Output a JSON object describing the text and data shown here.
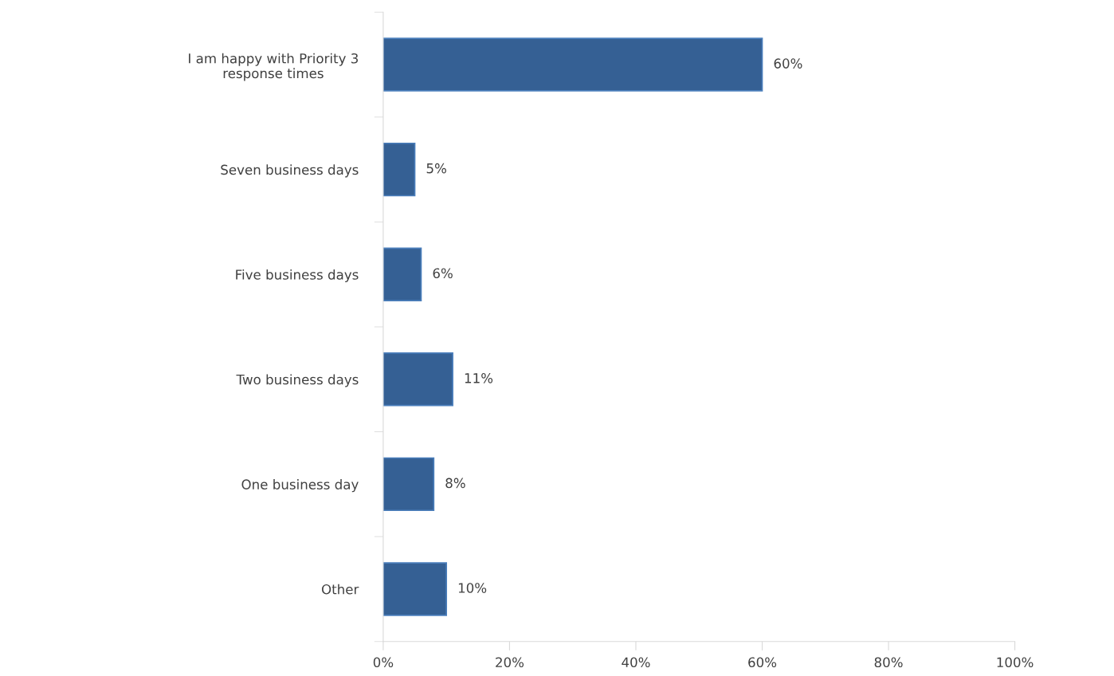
{
  "chart_data": {
    "type": "bar",
    "orientation": "horizontal",
    "categories": [
      "I am happy with Priority 3\nresponse times",
      "Seven business days",
      "Five business days",
      "Two business days",
      "One business day",
      "Other"
    ],
    "values": [
      60,
      5,
      6,
      11,
      8,
      10
    ],
    "value_labels": [
      "60%",
      "5%",
      "6%",
      "11%",
      "8%",
      "10%"
    ],
    "color": "#356094",
    "xlim": [
      0,
      100
    ],
    "xticks": [
      {
        "value": 0,
        "label": "0%"
      },
      {
        "value": 20,
        "label": "20%"
      },
      {
        "value": 40,
        "label": "40%"
      },
      {
        "value": 60,
        "label": "60%"
      },
      {
        "value": 80,
        "label": "80%"
      },
      {
        "value": 100,
        "label": "100%"
      }
    ],
    "grid": false,
    "legend": false
  }
}
